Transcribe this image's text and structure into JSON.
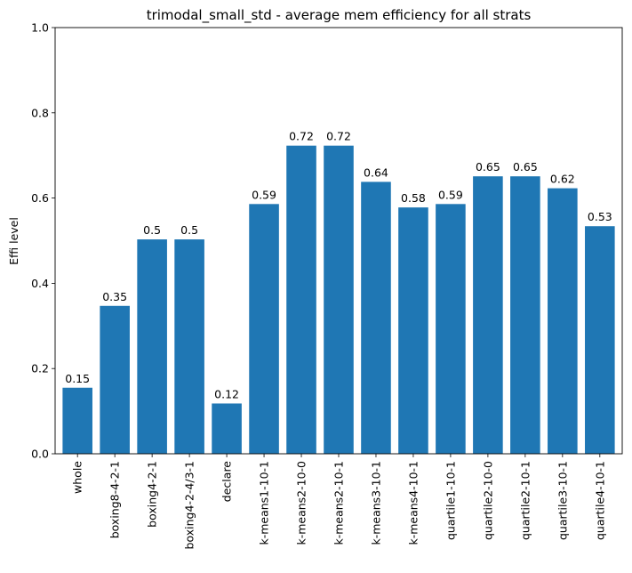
{
  "chart_data": {
    "type": "bar",
    "title": "trimodal_small_std - average mem efficiency for all strats",
    "xlabel": "",
    "ylabel": "Effi level",
    "ylim": [
      0,
      1.0
    ],
    "yticks": [
      "0.0",
      "0.2",
      "0.4",
      "0.6",
      "0.8",
      "1.0"
    ],
    "ytick_values": [
      0,
      0.2,
      0.4,
      0.6,
      0.8,
      1.0
    ],
    "grid": false,
    "bar_color": "#1f77b4",
    "categories": [
      "whole",
      "boxing8-4-2-1",
      "boxing4-2-1",
      "boxing4-2-4/3-1",
      "declare",
      "k-means1-10-1",
      "k-means2-10-0",
      "k-means2-10-1",
      "k-means3-10-1",
      "k-means4-10-1",
      "quartile1-10-1",
      "quartile2-10-0",
      "quartile2-10-1",
      "quartile3-10-1",
      "quartile4-10-1"
    ],
    "values": [
      0.155,
      0.347,
      0.503,
      0.503,
      0.118,
      0.586,
      0.723,
      0.723,
      0.638,
      0.578,
      0.586,
      0.651,
      0.651,
      0.623,
      0.534
    ],
    "value_labels": [
      "0.15",
      "0.35",
      "0.5",
      "0.5",
      "0.12",
      "0.59",
      "0.72",
      "0.72",
      "0.64",
      "0.58",
      "0.59",
      "0.65",
      "0.65",
      "0.62",
      "0.53"
    ]
  }
}
